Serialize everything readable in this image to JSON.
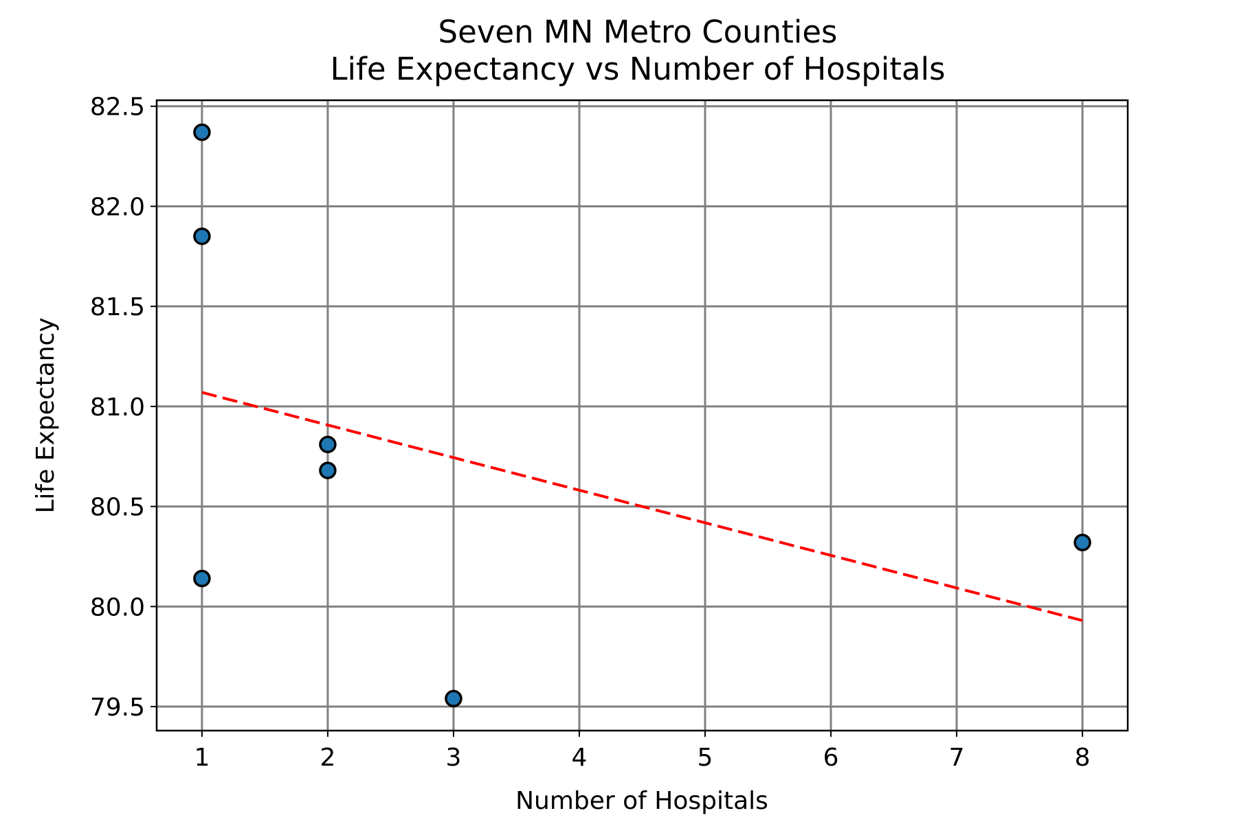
{
  "chart_data": {
    "type": "scatter",
    "title_lines": [
      "Seven MN Metro Counties",
      "Life Expectancy vs Number of Hospitals"
    ],
    "xlabel": "Number of Hospitals",
    "ylabel": "Life Expectancy",
    "xlim": [
      0.64,
      8.36
    ],
    "ylim": [
      79.38,
      82.53
    ],
    "xticks": [
      1,
      2,
      3,
      4,
      5,
      6,
      7,
      8
    ],
    "xtick_labels": [
      "1",
      "2",
      "3",
      "4",
      "5",
      "6",
      "7",
      "8"
    ],
    "yticks": [
      79.5,
      80.0,
      80.5,
      81.0,
      81.5,
      82.0,
      82.5
    ],
    "ytick_labels": [
      "79.5",
      "80.0",
      "80.5",
      "81.0",
      "81.5",
      "82.0",
      "82.5"
    ],
    "grid": true,
    "points": [
      {
        "x": 1,
        "y": 82.37
      },
      {
        "x": 1,
        "y": 81.85
      },
      {
        "x": 1,
        "y": 80.14
      },
      {
        "x": 2,
        "y": 80.81
      },
      {
        "x": 2,
        "y": 80.68
      },
      {
        "x": 3,
        "y": 79.54
      },
      {
        "x": 8,
        "y": 80.32
      }
    ],
    "trendline": {
      "x": [
        1,
        8
      ],
      "y": [
        81.07,
        79.93
      ],
      "style": "dashed"
    },
    "colors": {
      "point_fill": "#1f77b4",
      "point_edge": "#000000",
      "trendline": "#ff0000",
      "grid": "#808080"
    }
  }
}
